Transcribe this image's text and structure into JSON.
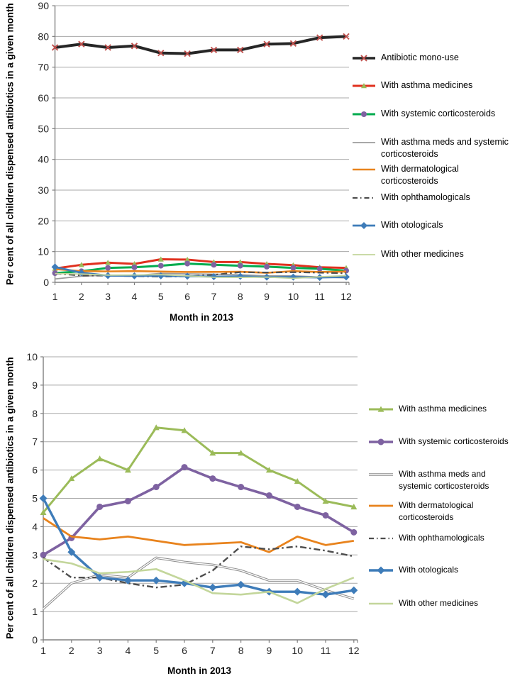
{
  "chart_data": [
    {
      "type": "line",
      "name": "antibiotics-with-comedication-overview",
      "ylabel": "Per cent of all children dispensed antibiotics in a given month",
      "xlabel": "Month in 2013",
      "x": [
        1,
        2,
        3,
        4,
        5,
        6,
        7,
        8,
        9,
        10,
        11,
        12
      ],
      "xtick_labels": [
        "1",
        "2",
        "3",
        "4",
        "5",
        "6",
        "7",
        "8",
        "9",
        "10",
        "11",
        "12"
      ],
      "ylim": [
        0,
        90
      ],
      "ytick_step": 10,
      "grid": true,
      "legend_position": "right",
      "series": [
        {
          "name": "Antibiotic mono-use",
          "color": "#262626",
          "line_width": 4,
          "marker": "x",
          "marker_color": "#C0504D",
          "marker_size": 4,
          "values": [
            76.4,
            77.5,
            76.4,
            76.9,
            74.6,
            74.4,
            75.6,
            75.6,
            77.5,
            77.7,
            79.6,
            80.0
          ]
        },
        {
          "name": "With asthma medicines",
          "color": "#E0301E",
          "line_width": 3,
          "marker": "triangle",
          "marker_color": "#9BBB59",
          "marker_size": 4,
          "values": [
            4.5,
            5.7,
            6.4,
            6.0,
            7.5,
            7.4,
            6.6,
            6.6,
            6.0,
            5.6,
            4.9,
            4.7
          ]
        },
        {
          "name": "With systemic corticosteroids",
          "color": "#00AB4E",
          "line_width": 3,
          "marker": "circle",
          "marker_color": "#7E62A1",
          "marker_size": 4,
          "values": [
            3.0,
            3.6,
            4.7,
            4.9,
            5.4,
            6.1,
            5.7,
            5.4,
            5.1,
            4.7,
            4.4,
            3.8
          ]
        },
        {
          "name": "With asthma meds and systemic corticosteroids",
          "color": "#9B9B9B",
          "line_width": 1.8,
          "marker": "none",
          "values": [
            1.1,
            2.0,
            2.3,
            2.2,
            2.9,
            2.75,
            2.65,
            2.45,
            2.1,
            2.1,
            1.75,
            1.45
          ]
        },
        {
          "name": "With dermatological corticosteroids",
          "color": "#E8831D",
          "line_width": 2.6,
          "marker": "none",
          "values": [
            4.3,
            3.65,
            3.55,
            3.65,
            3.5,
            3.35,
            3.4,
            3.45,
            3.1,
            3.65,
            3.35,
            3.5
          ]
        },
        {
          "name": "With ophthamologicals",
          "color": "#4D4D4D",
          "line_width": 2.2,
          "dash": "dashdot",
          "marker": "none",
          "values": [
            2.9,
            2.2,
            2.2,
            2.0,
            1.85,
            1.95,
            2.45,
            3.3,
            3.2,
            3.3,
            3.15,
            2.95
          ]
        },
        {
          "name": "With otologicals",
          "color": "#3E7CB9",
          "line_width": 2.8,
          "marker": "diamond",
          "marker_color": "#3E7CB9",
          "marker_size": 4,
          "values": [
            5.0,
            3.1,
            2.2,
            2.1,
            2.1,
            2.0,
            1.85,
            1.95,
            1.7,
            1.7,
            1.6,
            1.75
          ]
        },
        {
          "name": "With other medicines",
          "color": "#C3D69B",
          "line_width": 1.8,
          "marker": "none",
          "values": [
            2.85,
            2.7,
            2.35,
            2.4,
            2.5,
            2.1,
            1.65,
            1.6,
            1.7,
            1.3,
            1.8,
            2.2
          ]
        }
      ]
    },
    {
      "type": "line",
      "name": "antibiotics-with-comedication-zoomed",
      "ylabel": "Per cent of all children dispensed antibiotics in a given month",
      "xlabel": "Month in 2013",
      "x": [
        1,
        2,
        3,
        4,
        5,
        6,
        7,
        8,
        9,
        10,
        11,
        12
      ],
      "xtick_labels": [
        "1",
        "2",
        "3",
        "4",
        "5",
        "6",
        "7",
        "8",
        "9",
        "10",
        "11",
        "12"
      ],
      "ylim": [
        0,
        10
      ],
      "ytick_step": 1,
      "grid": true,
      "legend_position": "right",
      "series": [
        {
          "name": "With asthma medicines",
          "color": "#9BBB59",
          "line_width": 3,
          "marker": "triangle",
          "marker_color": "#9BBB59",
          "marker_size": 4.5,
          "values": [
            4.5,
            5.7,
            6.4,
            6.0,
            7.5,
            7.4,
            6.6,
            6.6,
            6.0,
            5.6,
            4.9,
            4.7
          ]
        },
        {
          "name": "With systemic corticosteroids",
          "color": "#7E62A1",
          "line_width": 3.6,
          "marker": "circle",
          "marker_color": "#7E62A1",
          "marker_size": 4.5,
          "values": [
            3.0,
            3.6,
            4.7,
            4.9,
            5.4,
            6.1,
            5.7,
            5.4,
            5.1,
            4.7,
            4.4,
            3.8
          ]
        },
        {
          "name": "With asthma meds and systemic corticosteroids",
          "color": "#8C8C8C",
          "line_width": 3.4,
          "style": "double",
          "marker": "none",
          "values": [
            1.1,
            2.0,
            2.3,
            2.2,
            2.9,
            2.75,
            2.65,
            2.45,
            2.1,
            2.1,
            1.75,
            1.45
          ]
        },
        {
          "name": "With dermatological corticosteroids",
          "color": "#E8831D",
          "line_width": 2.8,
          "marker": "none",
          "values": [
            4.3,
            3.65,
            3.55,
            3.65,
            3.5,
            3.35,
            3.4,
            3.45,
            3.1,
            3.65,
            3.35,
            3.5
          ]
        },
        {
          "name": "With ophthamologicals",
          "color": "#4D4D4D",
          "line_width": 2.4,
          "dash": "dashdot",
          "marker": "none",
          "values": [
            2.9,
            2.2,
            2.2,
            2.0,
            1.85,
            1.95,
            2.45,
            3.3,
            3.2,
            3.3,
            3.15,
            2.95
          ]
        },
        {
          "name": "With otologicals",
          "color": "#3E7CB9",
          "line_width": 3.4,
          "marker": "diamond",
          "marker_color": "#3E7CB9",
          "marker_size": 4.5,
          "values": [
            5.0,
            3.1,
            2.2,
            2.1,
            2.1,
            2.0,
            1.85,
            1.95,
            1.7,
            1.7,
            1.6,
            1.75
          ]
        },
        {
          "name": "With other medicines",
          "color": "#C3D69B",
          "line_width": 2.6,
          "marker": "none",
          "values": [
            2.85,
            2.7,
            2.35,
            2.4,
            2.5,
            2.1,
            1.65,
            1.6,
            1.7,
            1.3,
            1.8,
            2.2
          ]
        }
      ]
    }
  ],
  "colors": {
    "gridline": "#A8A8A8",
    "axis": "#808080",
    "tick_label": "#262626"
  }
}
